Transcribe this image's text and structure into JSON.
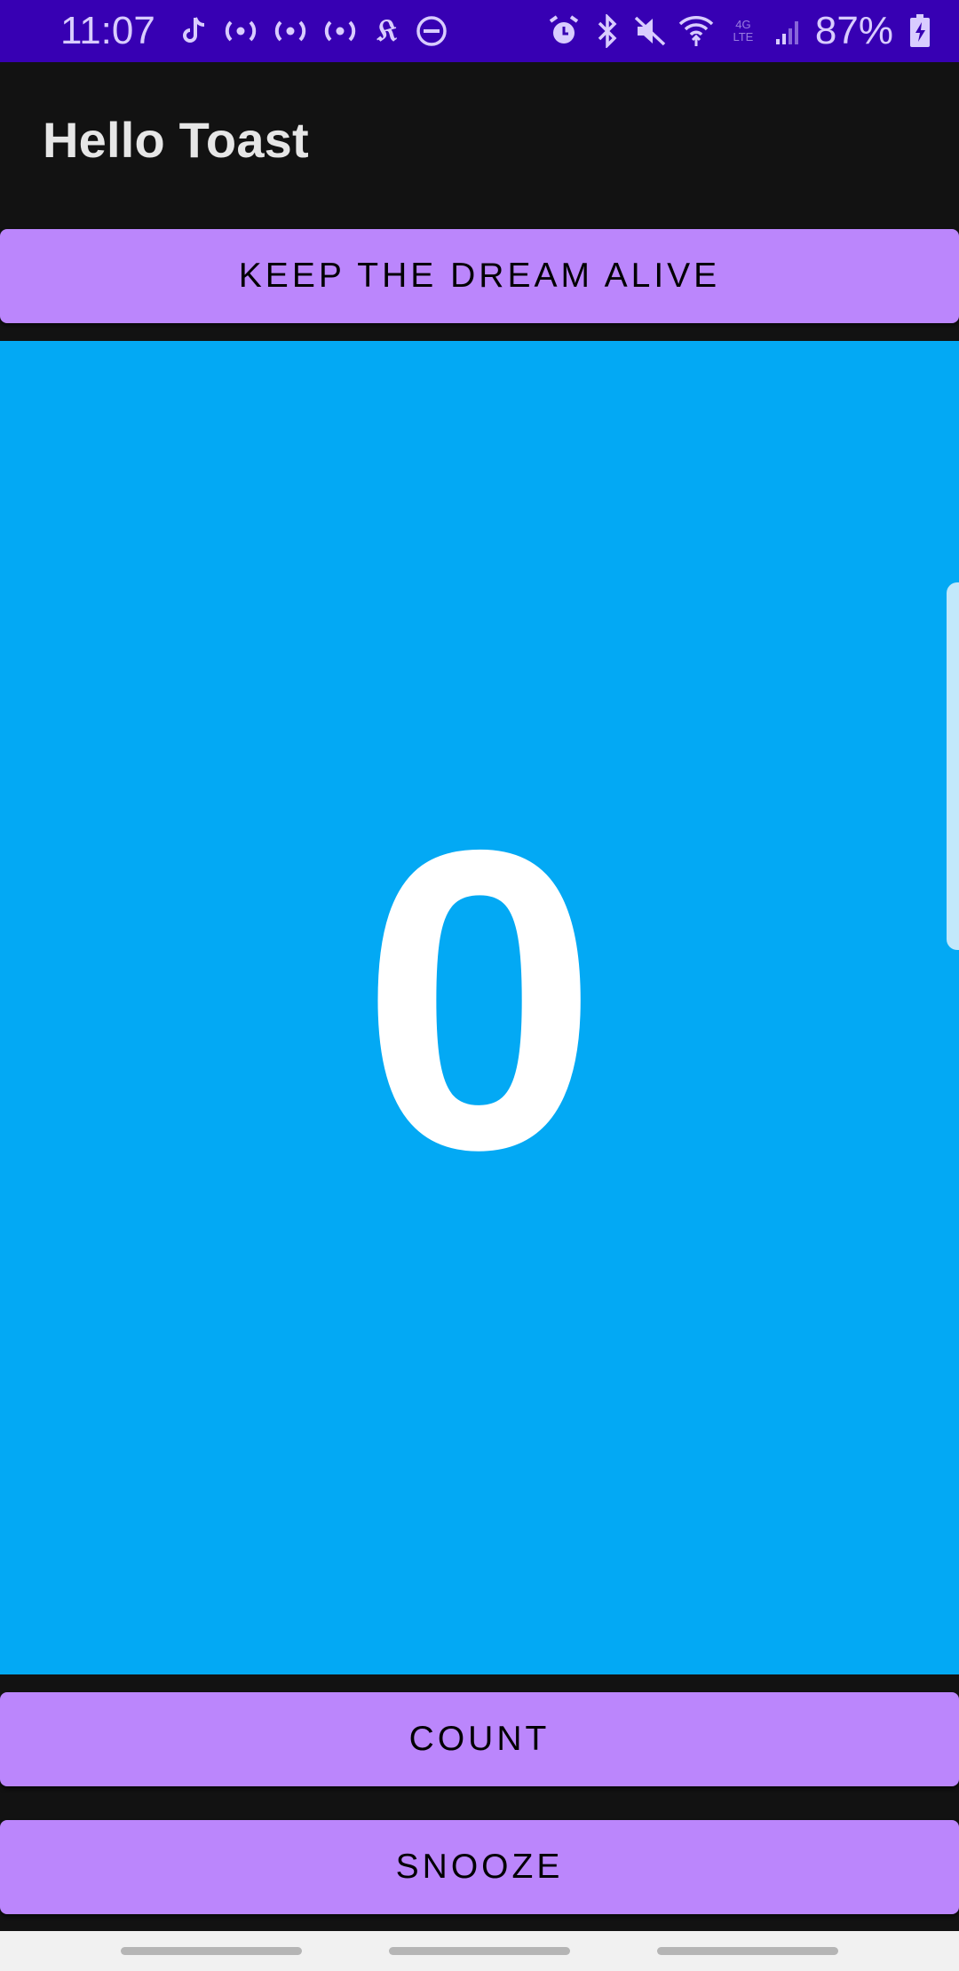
{
  "status_bar": {
    "time": "11:07",
    "battery_percent": "87%",
    "left_icons": [
      "tiktok-icon",
      "broadcast-icon",
      "broadcast-icon",
      "broadcast-icon",
      "nytimes-icon",
      "do-not-disturb-icon"
    ],
    "right_icons": [
      "alarm-icon",
      "bluetooth-icon",
      "mute-icon",
      "wifi-icon",
      "lte-icon",
      "signal-icon",
      "battery-charging-icon"
    ],
    "lte_label": "4G LTE",
    "background_color": "#3700b3"
  },
  "app_bar": {
    "title": "Hello Toast"
  },
  "buttons": {
    "top_label": "KEEP THE DREAM ALIVE",
    "count_label": "COUNT",
    "snooze_label": "SNOOZE",
    "color": "#bb86fc"
  },
  "counter": {
    "value": "0",
    "background_color": "#03a9f4"
  },
  "nav_bar": {
    "items": [
      "recents-button",
      "home-button",
      "back-button"
    ]
  }
}
